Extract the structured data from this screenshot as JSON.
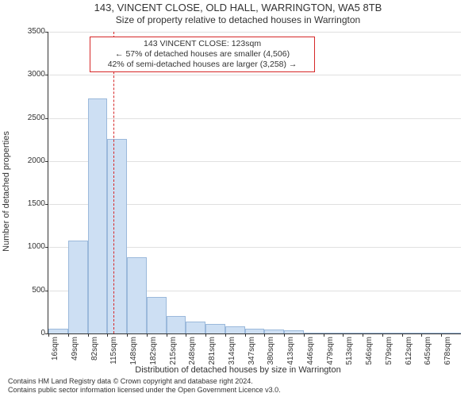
{
  "header": {
    "title": "143, VINCENT CLOSE, OLD HALL, WARRINGTON, WA5 8TB",
    "subtitle": "Size of property relative to detached houses in Warrington"
  },
  "axes": {
    "ylabel": "Number of detached properties",
    "xlabel": "Distribution of detached houses by size in Warrington",
    "label_fontsize": 11
  },
  "chart": {
    "type": "histogram",
    "bar_color": "#cddff3",
    "bar_border": "#9bb9db",
    "grid_color": "#e0e0e0",
    "axis_color": "#333333",
    "background_color": "#ffffff",
    "ylim": [
      0,
      3500
    ],
    "ytick_step": 500,
    "yticks": [
      0,
      500,
      1000,
      1500,
      2000,
      2500,
      3000,
      3500
    ],
    "xticks": [
      "16sqm",
      "49sqm",
      "82sqm",
      "115sqm",
      "148sqm",
      "182sqm",
      "215sqm",
      "248sqm",
      "281sqm",
      "314sqm",
      "347sqm",
      "380sqm",
      "413sqm",
      "446sqm",
      "479sqm",
      "513sqm",
      "546sqm",
      "579sqm",
      "612sqm",
      "645sqm",
      "678sqm"
    ],
    "bars": [
      {
        "label": "16sqm",
        "value": 60
      },
      {
        "label": "49sqm",
        "value": 1080
      },
      {
        "label": "82sqm",
        "value": 2730
      },
      {
        "label": "115sqm",
        "value": 2260
      },
      {
        "label": "148sqm",
        "value": 880
      },
      {
        "label": "182sqm",
        "value": 420
      },
      {
        "label": "215sqm",
        "value": 200
      },
      {
        "label": "248sqm",
        "value": 140
      },
      {
        "label": "281sqm",
        "value": 110
      },
      {
        "label": "314sqm",
        "value": 80
      },
      {
        "label": "347sqm",
        "value": 60
      },
      {
        "label": "380sqm",
        "value": 50
      },
      {
        "label": "413sqm",
        "value": 40
      },
      {
        "label": "446sqm",
        "value": 5
      },
      {
        "label": "479sqm",
        "value": 0
      },
      {
        "label": "513sqm",
        "value": 0
      },
      {
        "label": "546sqm",
        "value": 0
      },
      {
        "label": "579sqm",
        "value": 0
      },
      {
        "label": "612sqm",
        "value": 0
      },
      {
        "label": "645sqm",
        "value": 0
      },
      {
        "label": "678sqm",
        "value": 0
      }
    ],
    "bar_width_ratio": 1.0,
    "tick_fontsize": 10
  },
  "marker": {
    "value_sqm": 123,
    "x_min": 16,
    "x_max": 694,
    "line_color": "#d62728",
    "line_dash": "dashed",
    "line_width": 1
  },
  "annotation": {
    "lines": [
      "143 VINCENT CLOSE: 123sqm",
      "← 57% of detached houses are smaller (4,506)",
      "42% of semi-detached houses are larger (3,258) →"
    ],
    "border_color": "#d62728",
    "background": "#ffffff",
    "fontsize": 10.5
  },
  "footer": {
    "line1": "Contains HM Land Registry data © Crown copyright and database right 2024.",
    "line2": "Contains public sector information licensed under the Open Government Licence v3.0."
  }
}
